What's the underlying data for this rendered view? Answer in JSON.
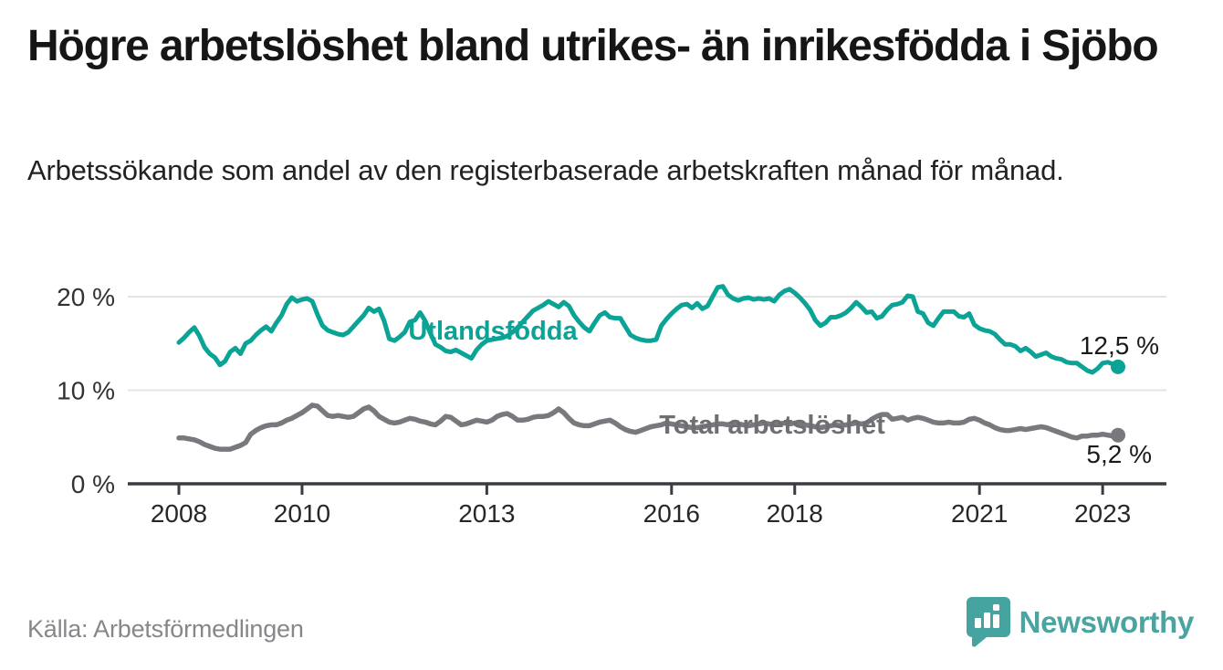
{
  "header": {
    "title": "Högre arbetslöshet bland utrikes- än inrikesfödda i Sjöbo",
    "subtitle": "Arbetssökande som andel av den registerbaserade arbetskraften månad för månad."
  },
  "footer": {
    "source": "Källa: Arbetsförmedlingen",
    "brand_name": "Newsworthy",
    "brand_icon": "newsworthy-speech-bubble-bar-chart-icon"
  },
  "colors": {
    "foreign_born_line": "#0aa396",
    "total_line": "#78787d",
    "total_label": "#6e6e73",
    "gridline": "#e4e4e4",
    "axis": "#3b3b40",
    "brand_teal": "#4aa4a0",
    "title_text": "#161616",
    "source_text": "#86868b"
  },
  "chart_data": {
    "type": "line",
    "frequency": "monthly",
    "start_month": "2008-01",
    "end_month": "2023-04",
    "ylabel": "",
    "xlabel": "",
    "ylim": [
      0,
      22
    ],
    "grid": "horizontal",
    "y_ticks": [
      {
        "label": "20 %",
        "value": 20
      },
      {
        "label": "10 %",
        "value": 10
      },
      {
        "label": "0 %",
        "value": 0
      }
    ],
    "x_ticks": [
      2008,
      2010,
      2013,
      2016,
      2018,
      2021,
      2023
    ],
    "series": [
      {
        "name": "Utlandsfödda",
        "end_label": "12,5 %",
        "end_value": 12.5,
        "values": [
          15.1,
          15.6,
          16.2,
          16.7,
          15.8,
          14.6,
          13.9,
          13.5,
          12.7,
          13.1,
          14.1,
          14.5,
          13.9,
          15.0,
          15.3,
          15.9,
          16.4,
          16.8,
          16.3,
          17.2,
          18.0,
          19.2,
          19.9,
          19.5,
          19.7,
          19.8,
          19.5,
          18.1,
          16.9,
          16.4,
          16.2,
          16.0,
          15.9,
          16.2,
          16.8,
          17.4,
          18.0,
          18.8,
          18.4,
          18.7,
          17.4,
          15.5,
          15.3,
          15.7,
          16.2,
          17.3,
          17.5,
          18.3,
          17.4,
          16.1,
          14.9,
          14.6,
          14.2,
          14.1,
          14.3,
          14.0,
          13.7,
          13.4,
          14.3,
          14.9,
          15.3,
          15.4,
          15.5,
          15.6,
          15.8,
          16.2,
          16.7,
          17.3,
          17.9,
          18.5,
          18.8,
          19.1,
          19.5,
          19.2,
          18.9,
          19.4,
          19.0,
          18.0,
          17.3,
          16.7,
          16.3,
          17.2,
          18.0,
          18.3,
          17.8,
          17.7,
          17.7,
          16.8,
          15.9,
          15.6,
          15.4,
          15.3,
          15.3,
          15.4,
          16.9,
          17.6,
          18.2,
          18.7,
          19.1,
          19.2,
          18.8,
          19.3,
          18.7,
          19.0,
          20.0,
          21.0,
          21.1,
          20.2,
          19.8,
          19.6,
          19.8,
          19.9,
          19.7,
          19.8,
          19.7,
          19.8,
          19.5,
          20.2,
          20.6,
          20.8,
          20.4,
          19.9,
          19.3,
          18.6,
          17.5,
          16.9,
          17.2,
          17.8,
          17.8,
          18.0,
          18.3,
          18.8,
          19.4,
          18.9,
          18.3,
          18.4,
          17.7,
          17.9,
          18.6,
          19.1,
          19.2,
          19.4,
          20.1,
          20.0,
          18.4,
          18.2,
          17.2,
          16.9,
          17.7,
          18.4,
          18.4,
          18.4,
          17.9,
          17.8,
          18.2,
          17.0,
          16.6,
          16.4,
          16.3,
          16.0,
          15.4,
          14.9,
          14.9,
          14.7,
          14.2,
          14.5,
          14.1,
          13.6,
          13.8,
          14.0,
          13.6,
          13.4,
          13.3,
          13.0,
          12.9,
          12.9,
          12.5,
          12.1,
          11.9,
          12.3,
          12.9,
          13.0,
          12.8,
          12.5
        ]
      },
      {
        "name": "Total arbetslöshet",
        "end_label": "5,2 %",
        "end_value": 5.2,
        "values": [
          4.9,
          4.9,
          4.8,
          4.7,
          4.5,
          4.2,
          4.0,
          3.8,
          3.7,
          3.7,
          3.7,
          3.9,
          4.1,
          4.4,
          5.3,
          5.7,
          6.0,
          6.2,
          6.3,
          6.3,
          6.5,
          6.8,
          7.0,
          7.3,
          7.6,
          8.0,
          8.4,
          8.3,
          7.8,
          7.3,
          7.2,
          7.3,
          7.2,
          7.1,
          7.2,
          7.6,
          8.0,
          8.2,
          7.8,
          7.2,
          6.9,
          6.6,
          6.5,
          6.6,
          6.8,
          7.0,
          6.9,
          6.7,
          6.6,
          6.4,
          6.3,
          6.7,
          7.2,
          7.1,
          6.7,
          6.3,
          6.4,
          6.6,
          6.8,
          6.7,
          6.6,
          6.8,
          7.2,
          7.4,
          7.5,
          7.2,
          6.8,
          6.8,
          6.9,
          7.1,
          7.2,
          7.2,
          7.3,
          7.6,
          8.0,
          7.6,
          7.0,
          6.5,
          6.3,
          6.2,
          6.2,
          6.4,
          6.6,
          6.7,
          6.8,
          6.5,
          6.1,
          5.8,
          5.6,
          5.5,
          5.7,
          5.9,
          6.1,
          6.2,
          6.3,
          6.5,
          6.4,
          6.3,
          6.2,
          6.1,
          6.0,
          6.0,
          6.1,
          6.2,
          6.3,
          6.4,
          6.4,
          6.3,
          6.5,
          6.4,
          6.3,
          6.2,
          6.3,
          6.4,
          6.5,
          6.4,
          6.3,
          6.4,
          6.5,
          6.4,
          6.5,
          6.4,
          6.3,
          6.2,
          6.1,
          6.0,
          6.1,
          6.2,
          6.3,
          6.2,
          6.3,
          6.4,
          6.5,
          6.4,
          6.5,
          6.9,
          7.2,
          7.4,
          7.4,
          6.9,
          7.0,
          7.1,
          6.8,
          7.0,
          7.1,
          7.0,
          6.8,
          6.6,
          6.5,
          6.5,
          6.6,
          6.5,
          6.5,
          6.6,
          6.9,
          7.0,
          6.8,
          6.5,
          6.3,
          6.0,
          5.8,
          5.7,
          5.7,
          5.8,
          5.9,
          5.8,
          5.9,
          6.0,
          6.1,
          6.0,
          5.8,
          5.6,
          5.4,
          5.2,
          5.0,
          4.9,
          5.1,
          5.1,
          5.2,
          5.2,
          5.3,
          5.2,
          5.1,
          5.2
        ]
      }
    ]
  }
}
